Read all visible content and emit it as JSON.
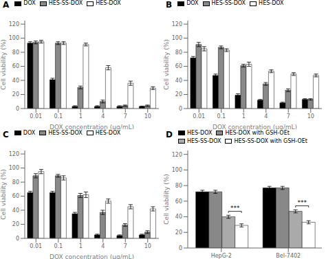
{
  "chart_data": [
    {
      "type": "bar",
      "title": "A",
      "categories": [
        "0.01",
        "0.1",
        "1",
        "4",
        "7",
        "10"
      ],
      "series": [
        {
          "name": "DOX",
          "color": "black",
          "values": [
            93,
            41,
            3,
            3,
            3,
            3
          ],
          "errors": [
            2,
            2,
            1,
            1,
            1,
            0.5
          ]
        },
        {
          "name": "HES-SS-DOX",
          "color": "#888888",
          "values": [
            94,
            93,
            30,
            10,
            4,
            4
          ],
          "errors": [
            2,
            2,
            2,
            2,
            1,
            1
          ]
        },
        {
          "name": "HES-DOX",
          "color": "white",
          "values": [
            95,
            93,
            91,
            58,
            36,
            29
          ],
          "errors": [
            2,
            2,
            2,
            3,
            3,
            2
          ]
        }
      ],
      "xlabel": "DOX concentration (μg/mL)",
      "ylabel": "Cell viability (%)",
      "ylim": [
        0,
        125
      ],
      "yticks": [
        0,
        20,
        40,
        60,
        80,
        100,
        120
      ],
      "grid": false
    },
    {
      "type": "bar",
      "title": "B",
      "categories": [
        "0.01",
        "0.1",
        "1",
        "4",
        "7",
        "10"
      ],
      "series": [
        {
          "name": "DOX",
          "color": "black",
          "values": [
            72,
            47,
            19,
            12,
            8,
            13
          ],
          "errors": [
            2,
            2,
            2,
            1,
            1,
            1
          ]
        },
        {
          "name": "HES-SS-DOX",
          "color": "#888888",
          "values": [
            91,
            87,
            61,
            35,
            26,
            13
          ],
          "errors": [
            3,
            2,
            2,
            2,
            2,
            1
          ]
        },
        {
          "name": "HES-DOX",
          "color": "white",
          "values": [
            85,
            83,
            63,
            53,
            49,
            47
          ],
          "errors": [
            3,
            2,
            3,
            2,
            2,
            2
          ]
        }
      ],
      "xlabel": "DOX concentration (μg/mL)",
      "ylabel": "Cell viability (%)",
      "ylim": [
        0,
        125
      ],
      "yticks": [
        0,
        20,
        40,
        60,
        80,
        100,
        120
      ],
      "grid": false
    },
    {
      "type": "bar",
      "title": "C",
      "categories": [
        "0.01",
        "0.1",
        "1",
        "4",
        "7",
        "10"
      ],
      "series": [
        {
          "name": "DOX",
          "color": "black",
          "values": [
            65,
            65,
            35,
            5,
            4,
            5
          ],
          "errors": [
            2,
            2,
            2,
            1,
            1,
            1
          ]
        },
        {
          "name": "HES-SS-DOX",
          "color": "#888888",
          "values": [
            89,
            89,
            61,
            37,
            19,
            9
          ],
          "errors": [
            3,
            2,
            3,
            3,
            2,
            2
          ]
        },
        {
          "name": "HES-DOX",
          "color": "white",
          "values": [
            95,
            86,
            62,
            53,
            45,
            42
          ],
          "errors": [
            3,
            3,
            4,
            3,
            3,
            3
          ]
        }
      ],
      "xlabel": "DOX concentration (μg/mL)",
      "ylabel": "Cell viability (%)",
      "ylim": [
        0,
        125
      ],
      "yticks": [
        0,
        20,
        40,
        60,
        80,
        100,
        120
      ],
      "grid": false
    },
    {
      "type": "bar",
      "title": "D",
      "categories": [
        "HepG-2",
        "Bel-7402"
      ],
      "series": [
        {
          "name": "HES-DOX",
          "color": "black",
          "values": [
            72,
            77
          ],
          "errors": [
            2,
            2
          ]
        },
        {
          "name": "HES-DOX with GSH-OEt",
          "color": "#888888",
          "values": [
            72,
            77
          ],
          "errors": [
            2,
            2
          ]
        },
        {
          "name": "HES-SS-DOX",
          "color": "#aaaaaa",
          "values": [
            40,
            47
          ],
          "errors": [
            2,
            2
          ]
        },
        {
          "name": "HES-SS-DOX with GSH-OEt",
          "color": "white",
          "values": [
            29,
            33
          ],
          "errors": [
            2,
            2
          ]
        }
      ],
      "ylabel": "Cell viability (%)",
      "ylim": [
        0,
        125
      ],
      "yticks": [
        0,
        20,
        40,
        60,
        80,
        100,
        120
      ],
      "grid": false,
      "annotations": [
        {
          "text": "***",
          "category": "HepG-2",
          "series": [
            "HES-SS-DOX",
            "HES-SS-DOX with GSH-OEt"
          ]
        },
        {
          "text": "***",
          "category": "Bel-7402",
          "series": [
            "HES-SS-DOX",
            "HES-SS-DOX with GSH-OEt"
          ]
        }
      ]
    }
  ]
}
